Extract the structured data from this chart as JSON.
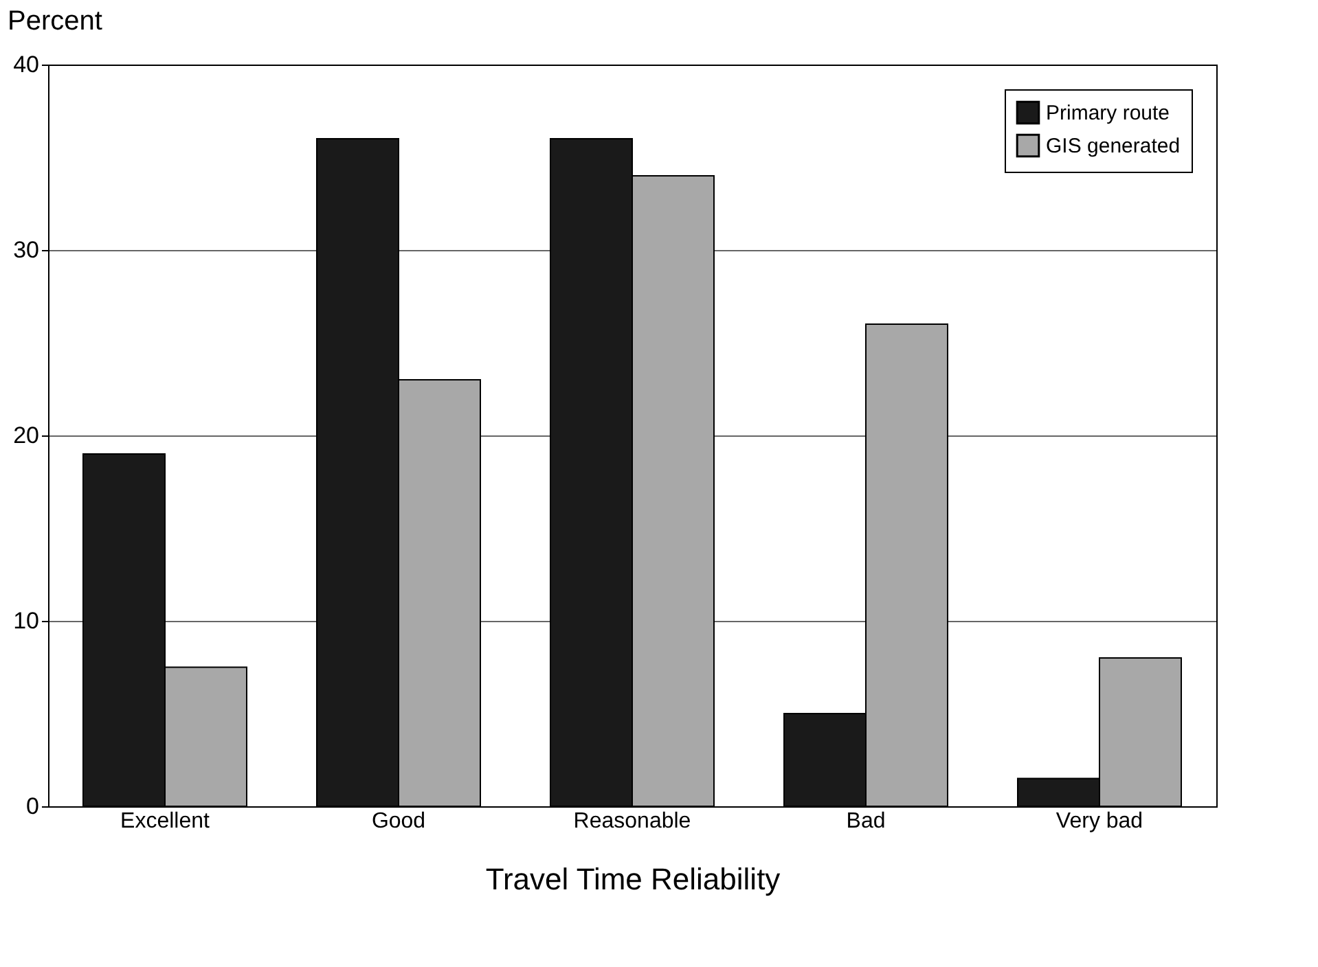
{
  "chart_data": {
    "type": "bar",
    "xlabel": "Travel Time Reliability",
    "ylabel": "Percent",
    "categories": [
      "Excellent",
      "Good",
      "Reasonable",
      "Bad",
      "Very bad"
    ],
    "series": [
      {
        "name": "Primary route",
        "color": "#1a1a1a",
        "values": [
          19,
          36,
          36,
          5,
          1.5
        ]
      },
      {
        "name": "GIS generated",
        "color": "#a8a8a8",
        "values": [
          7.5,
          23,
          34,
          26,
          8
        ]
      }
    ],
    "ylim": [
      0,
      40
    ],
    "yticks": [
      0,
      10,
      20,
      30,
      40
    ],
    "grid": "y",
    "legend": "top right"
  }
}
